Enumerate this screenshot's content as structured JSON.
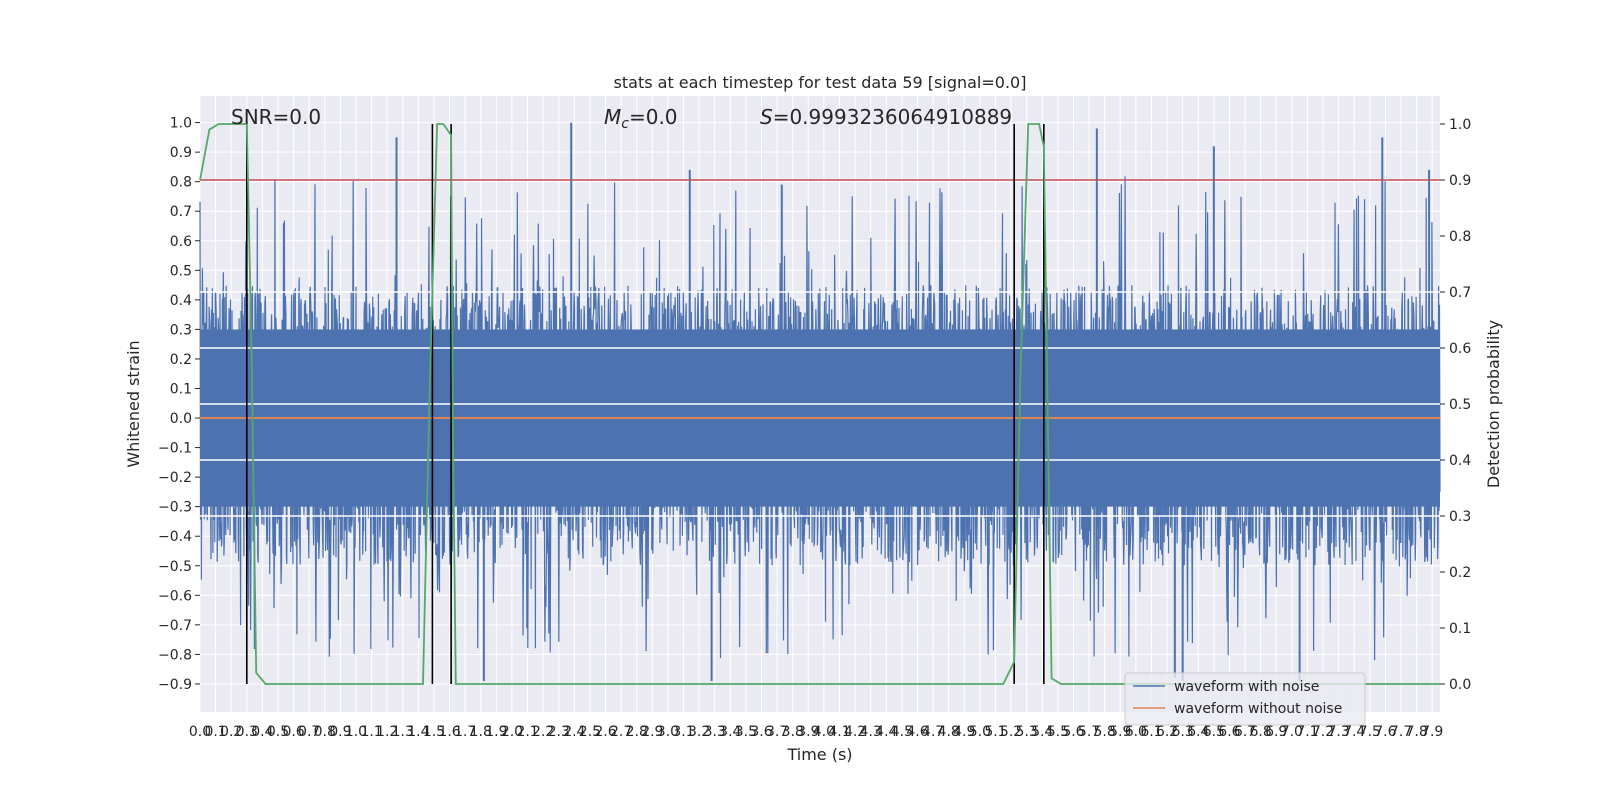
{
  "chart_data": {
    "type": "line",
    "title": "stats at each timestep for test data 59 [signal=0.0]",
    "xlabel": "Time (s)",
    "ylabel": "Whitened strain",
    "ylabel_right": "Detection probability",
    "xlim": [
      0.0,
      7.95
    ],
    "ylim": [
      -0.995,
      1.09
    ],
    "ylim_right": [
      -0.05,
      1.05
    ],
    "x_ticks": [
      "0.0",
      "0.1",
      "0.2",
      "0.3",
      "0.4",
      "0.5",
      "0.6",
      "0.7",
      "0.8",
      "0.9",
      "1.0",
      "1.1",
      "1.2",
      "1.3",
      "1.4",
      "1.5",
      "1.6",
      "1.7",
      "1.8",
      "1.9",
      "2.0",
      "2.1",
      "2.2",
      "2.3",
      "2.4",
      "2.5",
      "2.6",
      "2.7",
      "2.8",
      "2.9",
      "3.0",
      "3.1",
      "3.2",
      "3.3",
      "3.4",
      "3.5",
      "3.6",
      "3.7",
      "3.8",
      "3.9",
      "4.0",
      "4.1",
      "4.2",
      "4.3",
      "4.4",
      "4.5",
      "4.6",
      "4.7",
      "4.8",
      "4.9",
      "5.0",
      "5.1",
      "5.2",
      "5.3",
      "5.4",
      "5.5",
      "5.6",
      "5.7",
      "5.8",
      "5.9",
      "6.0",
      "6.1",
      "6.2",
      "6.3",
      "6.4",
      "6.5",
      "6.6",
      "6.7",
      "6.8",
      "6.9",
      "7.0",
      "7.1",
      "7.2",
      "7.3",
      "7.4",
      "7.5",
      "7.6",
      "7.7",
      "7.8",
      "7.9"
    ],
    "y_ticks": [
      "−0.9",
      "−0.8",
      "−0.7",
      "−0.6",
      "−0.5",
      "−0.4",
      "−0.3",
      "−0.2",
      "−0.1",
      "0.0",
      "0.1",
      "0.2",
      "0.3",
      "0.4",
      "0.5",
      "0.6",
      "0.7",
      "0.8",
      "0.9",
      "1.0"
    ],
    "y_ticks_right": [
      "0.0",
      "0.1",
      "0.2",
      "0.3",
      "0.4",
      "0.5",
      "0.6",
      "0.7",
      "0.8",
      "0.9",
      "1.0"
    ],
    "threshold": 0.9,
    "vertical_markers": [
      0.3,
      1.49,
      1.61,
      5.22,
      5.41
    ],
    "noisy_waveform": {
      "name": "waveform with noise",
      "color": "#4c72b0",
      "envelope_low": -0.5,
      "envelope_high": 0.45,
      "peak_max": 1.0,
      "peak_min": -0.89,
      "spikes": [
        [
          2.38,
          1.0
        ],
        [
          1.26,
          0.95
        ],
        [
          5.75,
          0.98
        ],
        [
          6.5,
          0.92
        ],
        [
          7.58,
          0.95
        ],
        [
          7.88,
          0.84
        ],
        [
          3.14,
          0.84
        ],
        [
          3.73,
          0.79
        ],
        [
          3.28,
          -0.89
        ],
        [
          6.3,
          -0.89
        ],
        [
          1.82,
          -0.89
        ],
        [
          6.25,
          -0.88
        ],
        [
          7.05,
          -0.89
        ]
      ]
    },
    "clean_waveform": {
      "name": "waveform without noise",
      "color": "#dd8452",
      "value": 0.0
    },
    "probability": {
      "name": "detection probability",
      "color": "#55a868",
      "x": [
        0.0,
        0.06,
        0.12,
        0.2,
        0.28,
        0.3,
        0.33,
        0.36,
        0.42,
        0.5,
        0.6,
        0.8,
        0.9,
        1.0,
        1.3,
        1.43,
        1.47,
        1.52,
        1.56,
        1.61,
        1.62,
        1.64,
        1.67,
        1.8,
        2.5,
        3.5,
        4.0,
        5.0,
        5.15,
        5.22,
        5.26,
        5.31,
        5.35,
        5.38,
        5.41,
        5.46,
        5.52,
        5.7,
        6.5,
        7.95
      ],
      "y": [
        0.9,
        0.99,
        1.0,
        1.0,
        1.0,
        1.0,
        0.6,
        0.02,
        0.0,
        0.0,
        0.0,
        0.0,
        0.0,
        0.0,
        0.0,
        0.0,
        0.5,
        1.0,
        1.0,
        0.98,
        0.5,
        0.0,
        0.0,
        0.0,
        0.0,
        0.0,
        0.0,
        0.0,
        0.0,
        0.04,
        0.55,
        1.0,
        1.0,
        1.0,
        0.96,
        0.01,
        0.0,
        0.0,
        0.0,
        0.0
      ]
    },
    "annotations": [
      {
        "label": "SNR=0.0",
        "x": 0.2
      },
      {
        "label": "M_c=0.0",
        "x": 2.6
      },
      {
        "label": "S=0.9993236064910889",
        "x": 3.6
      }
    ],
    "annotation_texts": {
      "snr": "SNR=0.0",
      "mc_base": "M",
      "mc_sub": "c",
      "mc_val": "=0.0",
      "s_var": "S",
      "s_val": "=0.9993236064910889"
    },
    "legend": {
      "position": "bottom-right",
      "entries": [
        "waveform with noise",
        "waveform without noise"
      ]
    }
  }
}
